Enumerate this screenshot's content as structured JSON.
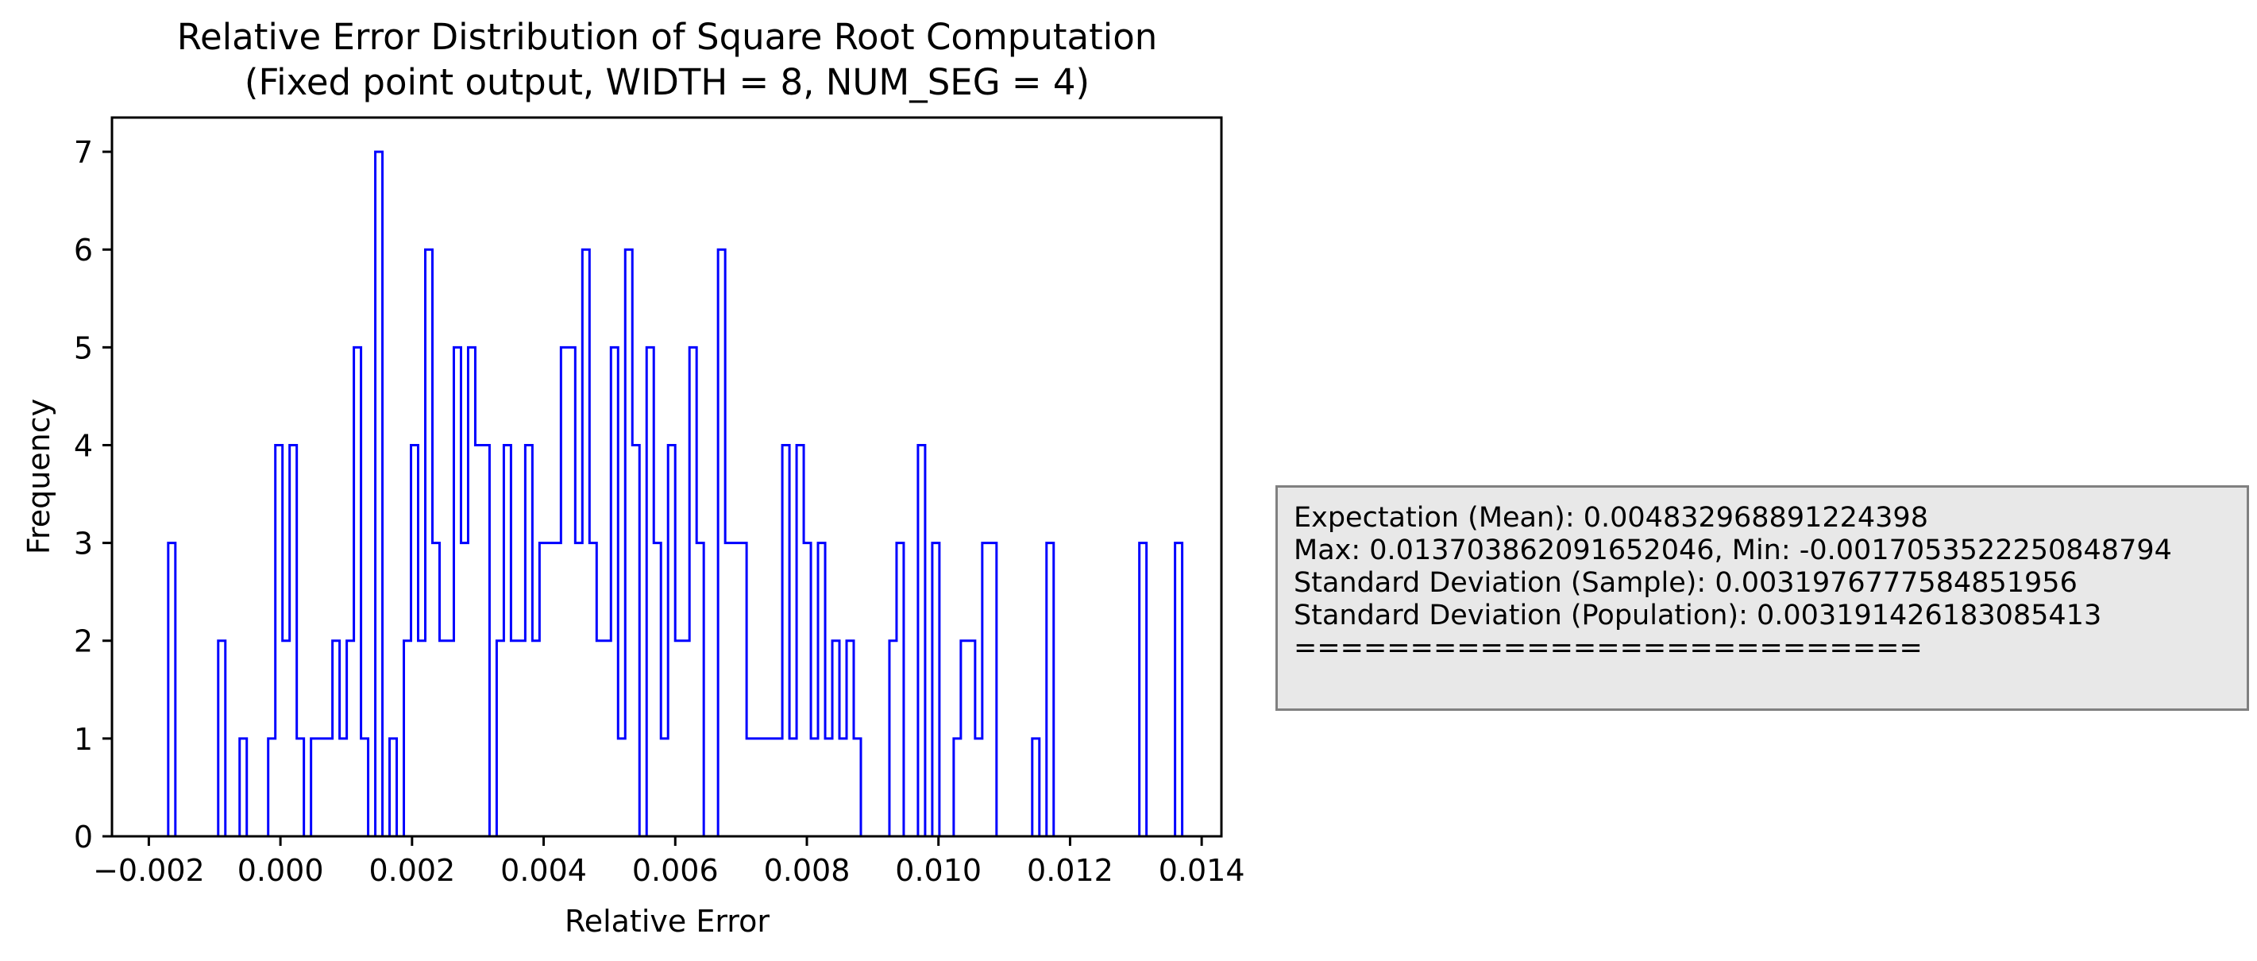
{
  "chart_data": {
    "type": "histogram",
    "title": "Relative Error Distribution of Square Root Computation",
    "subtitle": "(Fixed point output, WIDTH = 8, NUM_SEG = 4)",
    "xlabel": "Relative Error",
    "ylabel": "Frequency",
    "xlim": [
      -0.00256,
      0.0143
    ],
    "ylim": [
      0,
      7.35
    ],
    "xticks": [
      -0.002,
      0.0,
      0.002,
      0.004,
      0.006,
      0.008,
      0.01,
      0.012,
      0.014
    ],
    "xtick_labels": [
      "−0.002",
      "0.000",
      "0.002",
      "0.004",
      "0.006",
      "0.008",
      "0.010",
      "0.012",
      "0.014"
    ],
    "yticks": [
      0,
      1,
      2,
      3,
      4,
      5,
      6,
      7
    ],
    "ytick_labels": [
      "0",
      "1",
      "2",
      "3",
      "4",
      "5",
      "6",
      "7"
    ],
    "grid": false,
    "histtype": "step",
    "color": "#0000ff",
    "bin_start": -0.0017053522250848794,
    "bin_end": 0.013703862091652046,
    "counts": [
      3,
      0,
      0,
      0,
      0,
      0,
      0,
      2,
      0,
      0,
      1,
      0,
      0,
      0,
      1,
      4,
      2,
      4,
      1,
      0,
      1,
      1,
      1,
      2,
      1,
      2,
      5,
      1,
      0,
      7,
      0,
      1,
      0,
      2,
      4,
      2,
      6,
      3,
      2,
      2,
      5,
      3,
      5,
      4,
      4,
      0,
      2,
      4,
      2,
      2,
      4,
      2,
      3,
      3,
      3,
      5,
      5,
      3,
      6,
      3,
      2,
      2,
      5,
      1,
      6,
      4,
      0,
      5,
      3,
      1,
      4,
      2,
      2,
      5,
      3,
      0,
      0,
      6,
      3,
      3,
      3,
      1,
      1,
      1,
      1,
      1,
      4,
      1,
      4,
      3,
      1,
      3,
      1,
      2,
      1,
      2,
      1,
      0,
      0,
      0,
      0,
      2,
      3,
      0,
      0,
      4,
      0,
      3,
      0,
      0,
      1,
      2,
      2,
      1,
      3,
      3,
      0,
      0,
      0,
      0,
      0,
      1,
      0,
      3,
      0,
      0,
      0,
      0,
      0,
      0,
      0,
      0,
      0,
      0,
      0,
      0,
      3,
      0,
      0,
      0,
      0,
      3
    ]
  },
  "stats": {
    "lines": [
      "Expectation (Mean): 0.004832968891224398",
      "Max: 0.013703862091652046, Min: -0.0017053522250848794",
      "Standard Deviation (Sample): 0.0031976777584851956",
      "Standard Deviation (Population): 0.003191426183085413",
      "==========================="
    ]
  }
}
